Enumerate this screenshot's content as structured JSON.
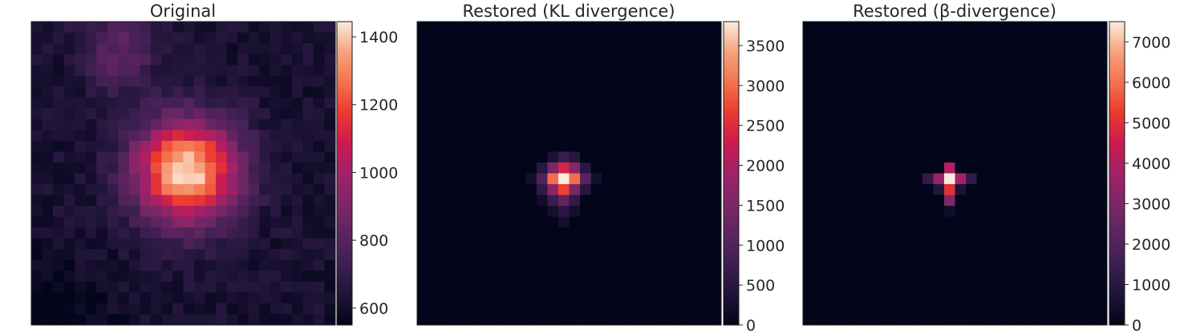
{
  "chart_data": [
    {
      "type": "heatmap",
      "title": "Original",
      "grid": false,
      "colormap": "rocket",
      "image_size": 28,
      "colorbar": {
        "vmin": 550,
        "vmax": 1445,
        "ticks": [
          600,
          800,
          1000,
          1200,
          1400
        ],
        "tick_labels": [
          "600",
          "800",
          "1000",
          "1200",
          "1400"
        ]
      },
      "background_level": 620,
      "features": [
        {
          "kind": "gaussian",
          "center": [
            13.3,
            13.8
          ],
          "sigma": 3.3,
          "amplitude": 820
        },
        {
          "kind": "gaussian",
          "center": [
            2.2,
            7.5
          ],
          "sigma": 2.4,
          "amplitude": 200
        }
      ],
      "noise_amplitude": 45
    },
    {
      "type": "heatmap",
      "title": "Restored (KL divergence)",
      "grid": false,
      "colormap": "rocket",
      "image_size": 28,
      "colorbar": {
        "vmin": 0,
        "vmax": 3800,
        "ticks": [
          0,
          500,
          1000,
          1500,
          2000,
          2500,
          3000,
          3500
        ],
        "tick_labels": [
          "0",
          "500",
          "1000",
          "1500",
          "2000",
          "2500",
          "3000",
          "3500"
        ]
      },
      "pixels": [
        {
          "row": 12,
          "col": 12,
          "value": 350
        },
        {
          "row": 12,
          "col": 13,
          "value": 700
        },
        {
          "row": 12,
          "col": 14,
          "value": 450
        },
        {
          "row": 13,
          "col": 11,
          "value": 500
        },
        {
          "row": 13,
          "col": 12,
          "value": 1500
        },
        {
          "row": 13,
          "col": 13,
          "value": 2400
        },
        {
          "row": 13,
          "col": 14,
          "value": 1600
        },
        {
          "row": 13,
          "col": 15,
          "value": 500
        },
        {
          "row": 14,
          "col": 10,
          "value": 250
        },
        {
          "row": 14,
          "col": 11,
          "value": 1000
        },
        {
          "row": 14,
          "col": 12,
          "value": 3000
        },
        {
          "row": 14,
          "col": 13,
          "value": 3800
        },
        {
          "row": 14,
          "col": 14,
          "value": 3000
        },
        {
          "row": 14,
          "col": 15,
          "value": 1100
        },
        {
          "row": 14,
          "col": 16,
          "value": 250
        },
        {
          "row": 15,
          "col": 11,
          "value": 600
        },
        {
          "row": 15,
          "col": 12,
          "value": 1700
        },
        {
          "row": 15,
          "col": 13,
          "value": 2700
        },
        {
          "row": 15,
          "col": 14,
          "value": 1500
        },
        {
          "row": 15,
          "col": 15,
          "value": 500
        },
        {
          "row": 16,
          "col": 11,
          "value": 200
        },
        {
          "row": 16,
          "col": 12,
          "value": 700
        },
        {
          "row": 16,
          "col": 13,
          "value": 1200
        },
        {
          "row": 16,
          "col": 14,
          "value": 600
        },
        {
          "row": 17,
          "col": 12,
          "value": 250
        },
        {
          "row": 17,
          "col": 13,
          "value": 500
        },
        {
          "row": 17,
          "col": 14,
          "value": 250
        },
        {
          "row": 18,
          "col": 13,
          "value": 250
        }
      ]
    },
    {
      "type": "heatmap",
      "title": "Restored (β-divergence)",
      "grid": false,
      "colormap": "rocket",
      "image_size": 28,
      "colorbar": {
        "vmin": 0,
        "vmax": 7500,
        "ticks": [
          0,
          1000,
          2000,
          3000,
          4000,
          5000,
          6000,
          7000
        ],
        "tick_labels": [
          "0",
          "1000",
          "2000",
          "3000",
          "4000",
          "5000",
          "6000",
          "7000"
        ]
      },
      "pixels": [
        {
          "row": 13,
          "col": 13,
          "value": 4000
        },
        {
          "row": 14,
          "col": 11,
          "value": 1200
        },
        {
          "row": 14,
          "col": 12,
          "value": 3500
        },
        {
          "row": 14,
          "col": 13,
          "value": 7500
        },
        {
          "row": 14,
          "col": 14,
          "value": 3800
        },
        {
          "row": 14,
          "col": 15,
          "value": 1200
        },
        {
          "row": 15,
          "col": 12,
          "value": 800
        },
        {
          "row": 15,
          "col": 13,
          "value": 5000
        },
        {
          "row": 15,
          "col": 14,
          "value": 700
        },
        {
          "row": 16,
          "col": 13,
          "value": 3000
        },
        {
          "row": 17,
          "col": 13,
          "value": 400
        }
      ]
    }
  ]
}
